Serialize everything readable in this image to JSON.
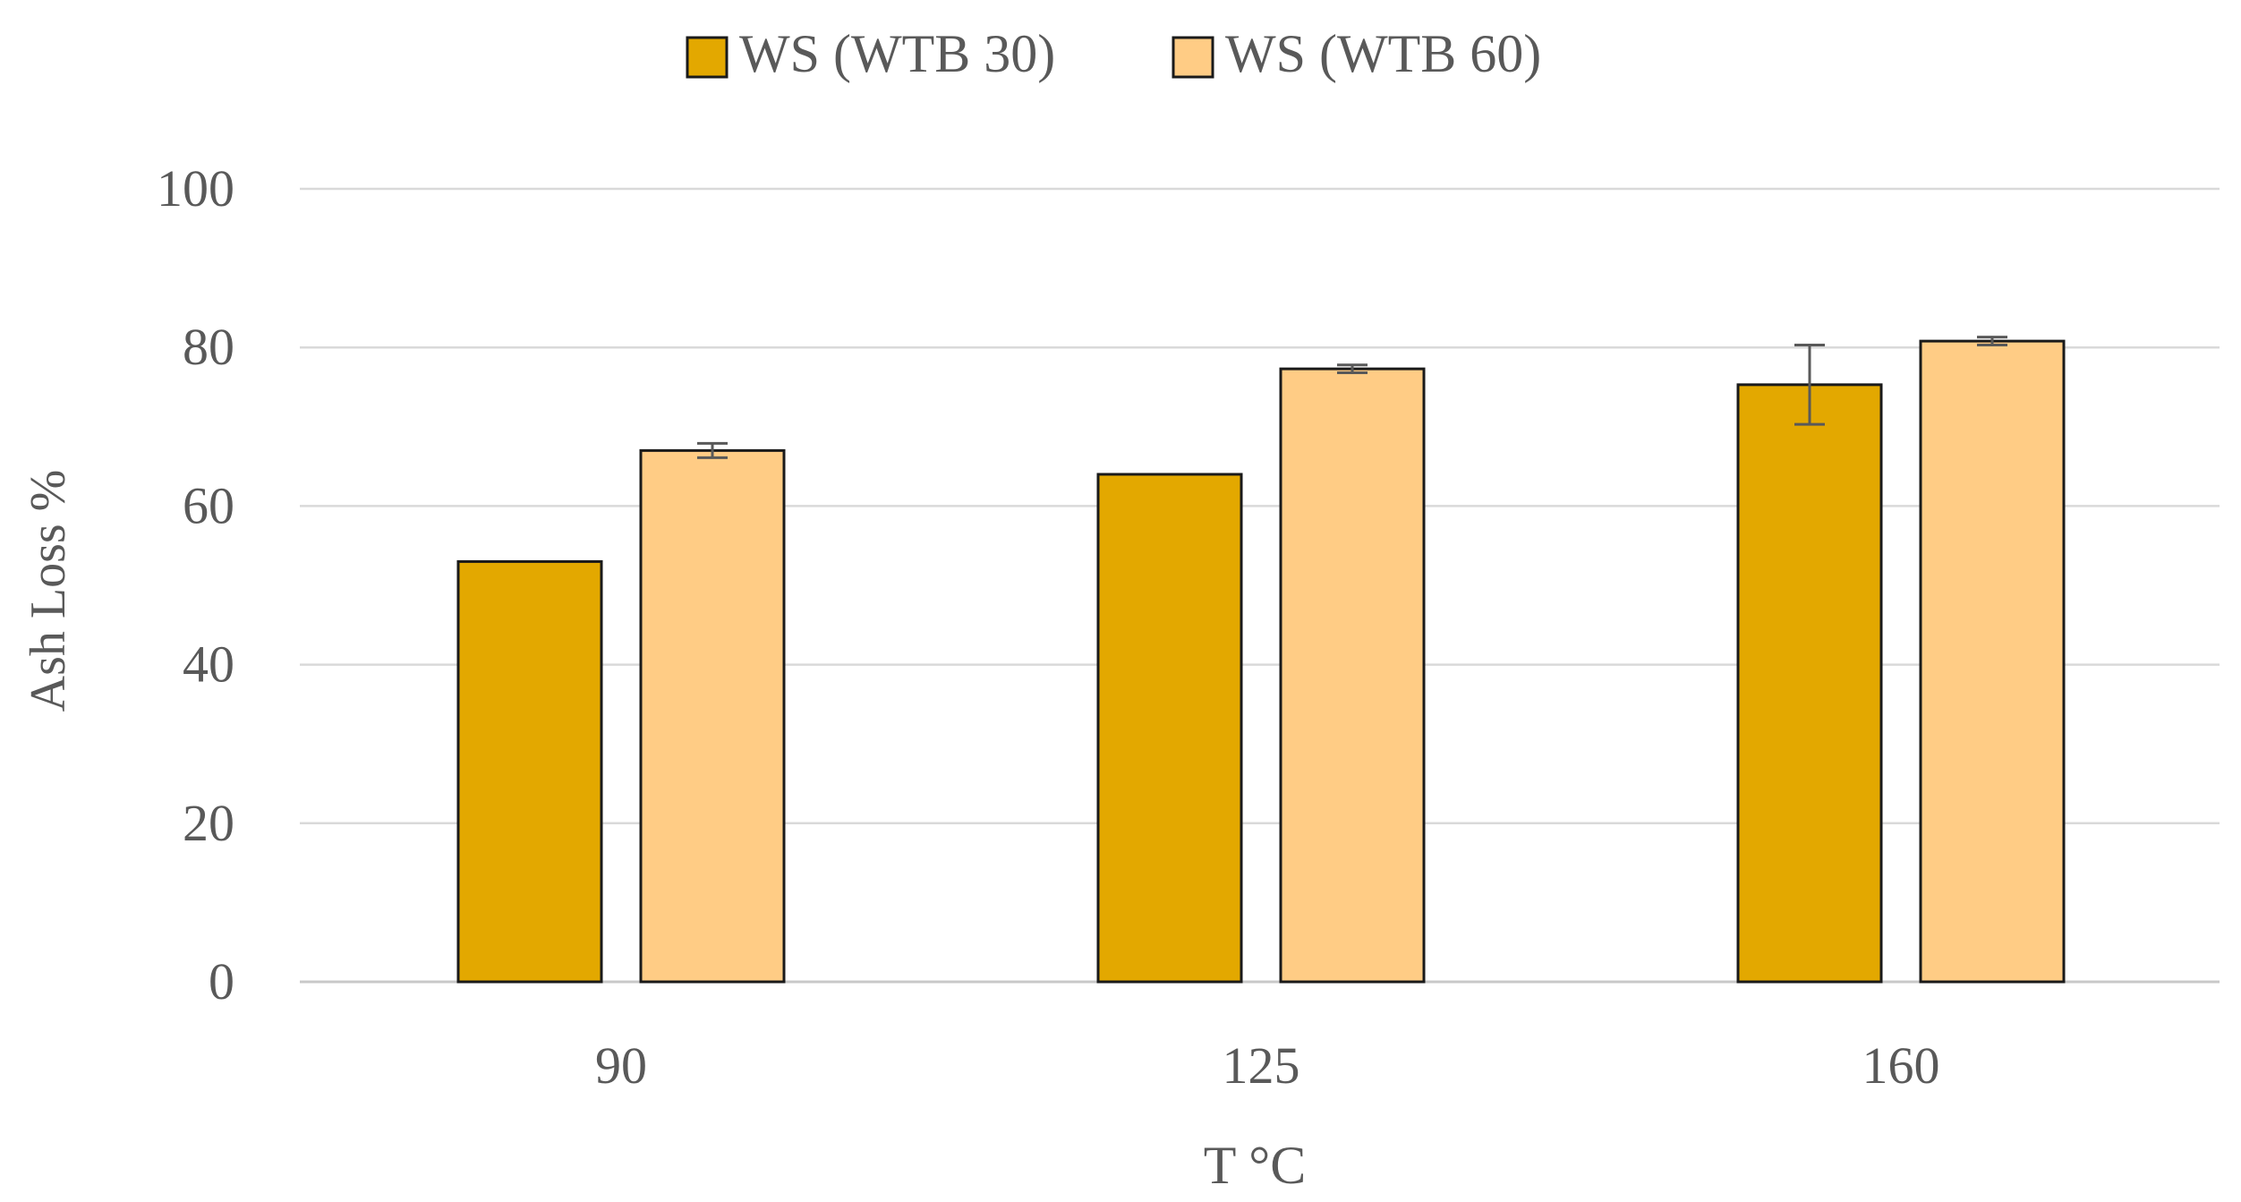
{
  "chart_data": {
    "type": "bar",
    "title": "",
    "xlabel": "T °C",
    "ylabel": "Ash Loss  %",
    "categories": [
      "90",
      "125",
      "160"
    ],
    "ylim": [
      0,
      100
    ],
    "yticks": [
      0,
      20,
      40,
      60,
      80,
      100
    ],
    "grid": true,
    "legend_position": "top-center",
    "series": [
      {
        "name": "WS (WTB 30)",
        "color": "#E3A800",
        "values": [
          53,
          64,
          75.3
        ],
        "errors": [
          0,
          0,
          5
        ]
      },
      {
        "name": "WS (WTB 60)",
        "color": "#FFCC85",
        "values": [
          67,
          77.3,
          80.8
        ],
        "errors": [
          0.9,
          0.5,
          0.5
        ]
      }
    ]
  }
}
